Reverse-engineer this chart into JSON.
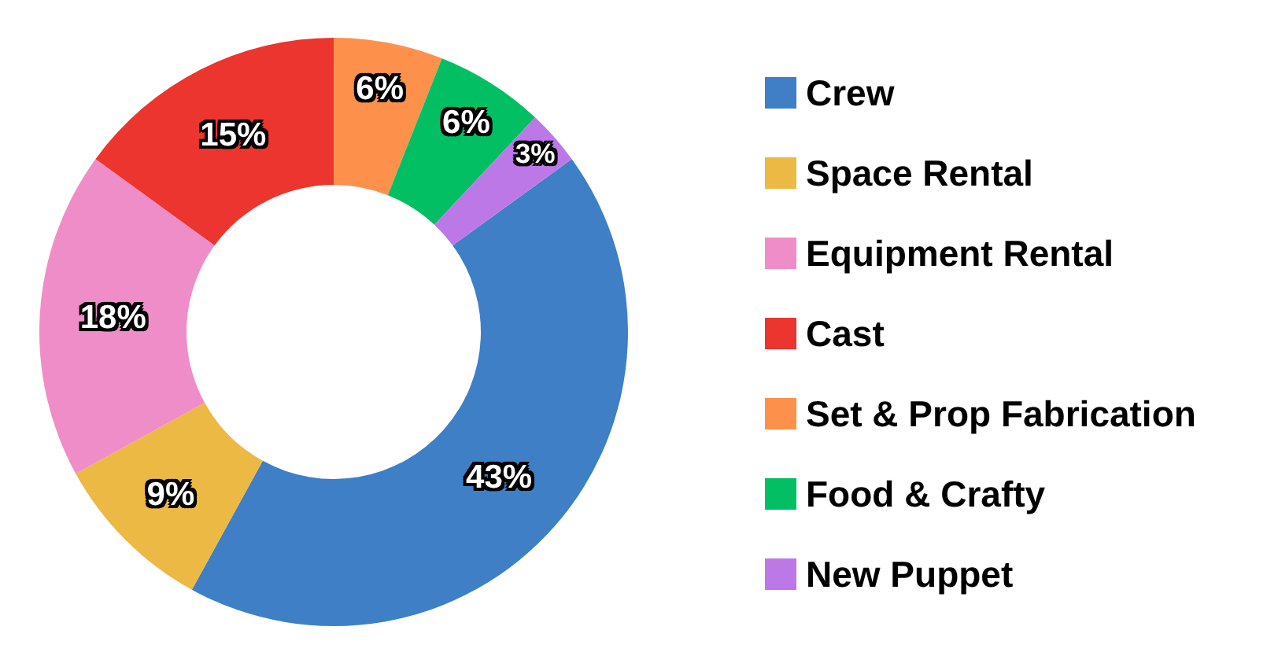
{
  "chart_data": {
    "type": "donut",
    "categories": [
      "Crew",
      "Space Rental",
      "Equipment Rental",
      "Cast",
      "Set & Prop Fabrication",
      "Food & Crafty",
      "New Puppet"
    ],
    "values": [
      43,
      9,
      18,
      15,
      6,
      6,
      3
    ],
    "colors": [
      "#3e7fc6",
      "#ecb945",
      "#ef8dc8",
      "#ec352e",
      "#fd914b",
      "#03bf63",
      "#bd78e8"
    ],
    "value_labels": [
      "43%",
      "9%",
      "18%",
      "15%",
      "6%",
      "6%",
      "3%"
    ],
    "legend": "right"
  }
}
